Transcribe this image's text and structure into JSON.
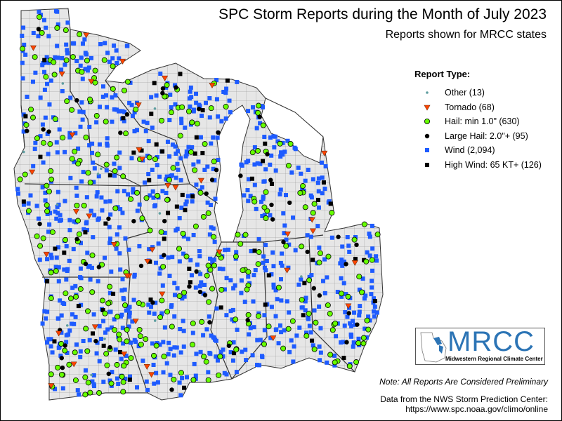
{
  "header": {
    "title": "SPC Storm Reports during the Month of July 2023",
    "subtitle": "Reports shown for MRCC states"
  },
  "legend": {
    "title": "Report Type:",
    "items": [
      {
        "key": "other",
        "label": "Other (13)",
        "count": 13,
        "color": "#5f9ea0",
        "icon": "small-dot"
      },
      {
        "key": "tornado",
        "label": "Tornado (68)",
        "count": 68,
        "color": "#ff4500",
        "icon": "down-triangle"
      },
      {
        "key": "hail",
        "label": "Hail: min 1.0\" (630)",
        "count": 630,
        "color": "#66ff00",
        "icon": "circle"
      },
      {
        "key": "large_hail",
        "label": "Large Hail: 2.0\"+ (95)",
        "count": 95,
        "color": "#000000",
        "icon": "circle"
      },
      {
        "key": "wind",
        "label": "Wind (2,094)",
        "count": 2094,
        "color": "#1e5bff",
        "icon": "square"
      },
      {
        "key": "high_wind",
        "label": "High Wind: 65 KT+ (126)",
        "count": 126,
        "color": "#000000",
        "icon": "square"
      }
    ]
  },
  "logo": {
    "name": "MRCC",
    "full_name": "Midwestern Regional Climate Center"
  },
  "footer": {
    "note": "Note: All Reports Are Considered Preliminary",
    "source_line1": "Data from the NWS Storm Prediction Center:",
    "source_line2": "https://www.spc.noaa.gov/climo/online"
  },
  "colors": {
    "land": "#e6e6e6",
    "water": "#ffffff",
    "border": "#555555"
  }
}
